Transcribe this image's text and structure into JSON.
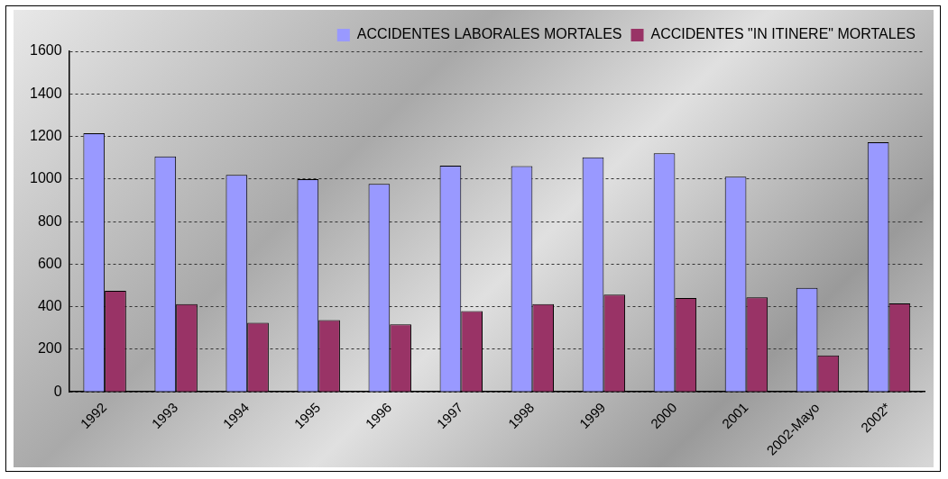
{
  "chart_data": {
    "type": "bar",
    "categories": [
      "1992",
      "1993",
      "1994",
      "1995",
      "1996",
      "1997",
      "1998",
      "1999",
      "2000",
      "2001",
      "2002-Mayo",
      "2002*"
    ],
    "series": [
      {
        "name": "ACCIDENTES LABORALES MORTALES",
        "color": "#9999ff",
        "values": [
          1215,
          1106,
          1019,
          999,
          977,
          1063,
          1061,
          1102,
          1121,
          1011,
          488,
          1173
        ]
      },
      {
        "name": "ACCIDENTES \"IN ITINERE\" MORTALES",
        "color": "#993366",
        "values": [
          475,
          412,
          325,
          337,
          317,
          380,
          412,
          457,
          441,
          444,
          171,
          415
        ]
      }
    ],
    "ylim": [
      0,
      1600
    ],
    "yticks": [
      0,
      200,
      400,
      600,
      800,
      1000,
      1200,
      1400,
      1600
    ],
    "grid": "y",
    "legend": "top right"
  }
}
